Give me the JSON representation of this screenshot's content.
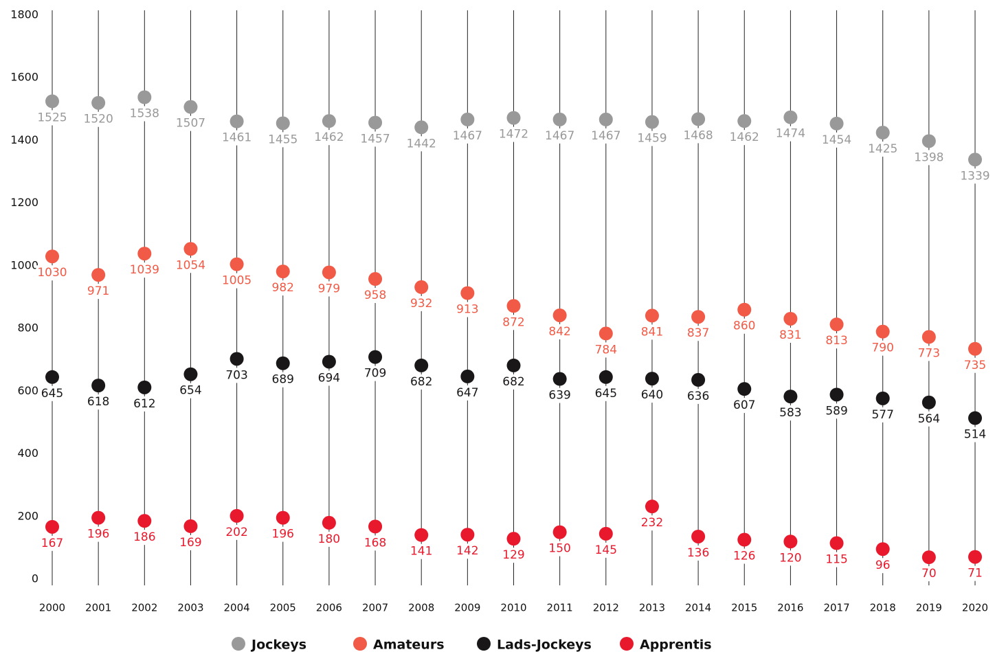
{
  "chart_data": {
    "type": "dot",
    "categories": [
      "2000",
      "2001",
      "2002",
      "2003",
      "2004",
      "2005",
      "2006",
      "2007",
      "2008",
      "2009",
      "2010",
      "2011",
      "2012",
      "2013",
      "2014",
      "2015",
      "2016",
      "2017",
      "2018",
      "2019",
      "2020"
    ],
    "series": [
      {
        "name": "Jockeys",
        "color": "#999999",
        "values": [
          1525,
          1520,
          1538,
          1507,
          1461,
          1455,
          1462,
          1457,
          1442,
          1467,
          1472,
          1467,
          1467,
          1459,
          1468,
          1462,
          1474,
          1454,
          1425,
          1398,
          1339
        ]
      },
      {
        "name": "Amateurs",
        "color": "#f05a46",
        "values": [
          1030,
          971,
          1039,
          1054,
          1005,
          982,
          979,
          958,
          932,
          913,
          872,
          842,
          784,
          841,
          837,
          860,
          831,
          813,
          790,
          773,
          735
        ]
      },
      {
        "name": "Lads-Jockeys",
        "color": "#1a1718",
        "values": [
          645,
          618,
          612,
          654,
          703,
          689,
          694,
          709,
          682,
          647,
          682,
          639,
          645,
          640,
          636,
          607,
          583,
          589,
          577,
          564,
          514
        ]
      },
      {
        "name": "Apprentis",
        "color": "#e8192c",
        "values": [
          167,
          196,
          186,
          169,
          202,
          196,
          180,
          168,
          141,
          142,
          129,
          150,
          145,
          232,
          136,
          126,
          120,
          115,
          96,
          70,
          71
        ]
      }
    ],
    "ylim": [
      0,
      1800
    ],
    "yticks": [
      0,
      200,
      400,
      600,
      800,
      1000,
      1200,
      1400,
      1600,
      1800
    ],
    "legend": "bottom"
  }
}
